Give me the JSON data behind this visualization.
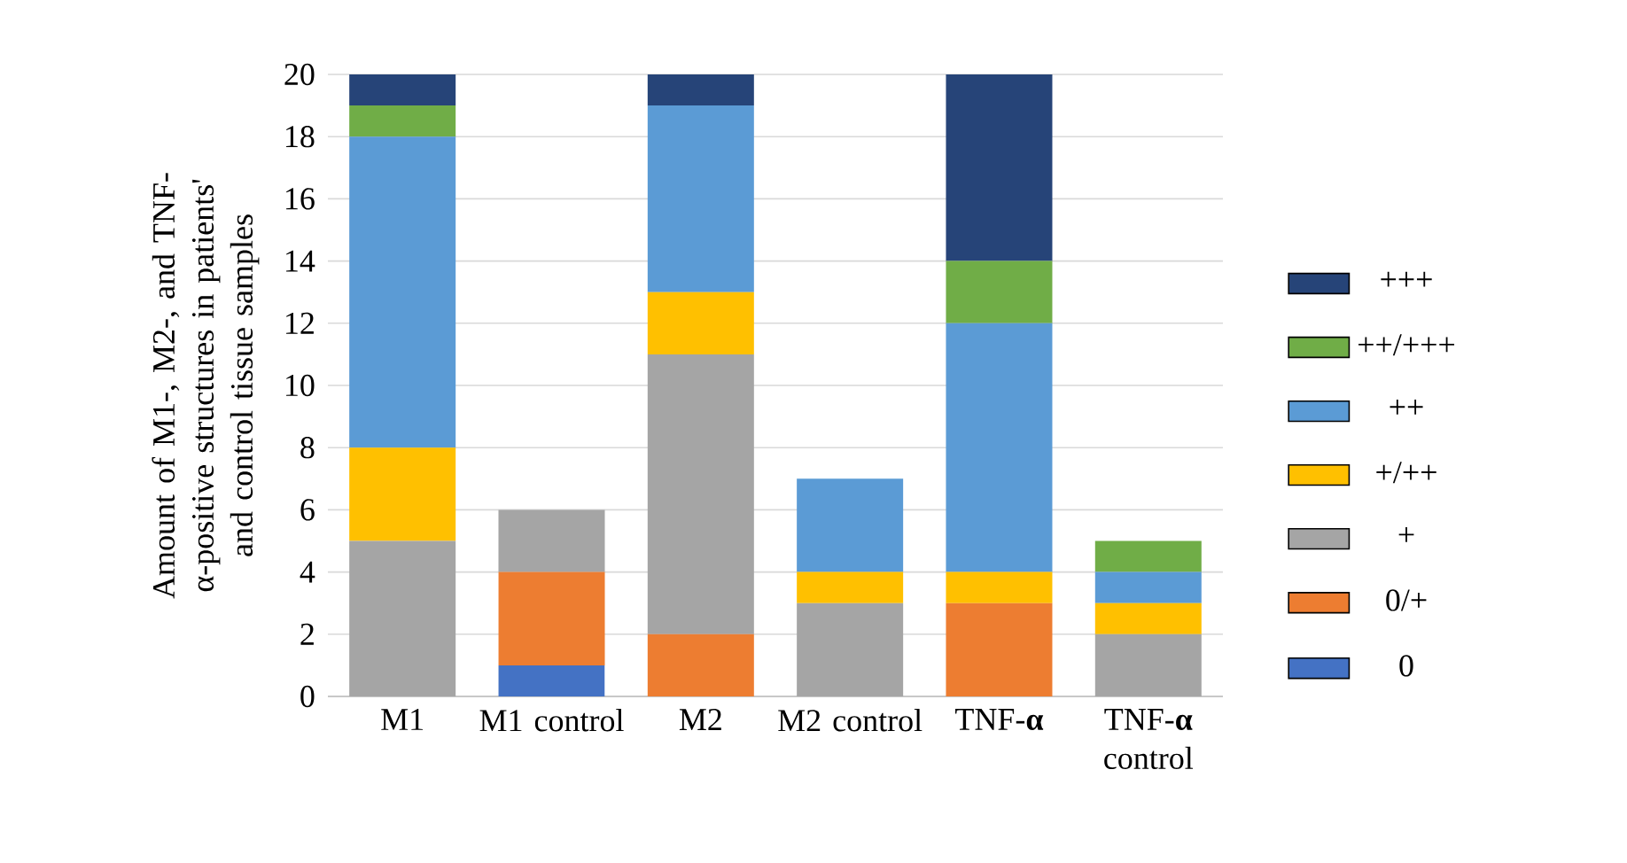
{
  "chart_data": {
    "type": "bar",
    "stacked": true,
    "ylabel": "Amount of M1-, M2-, and TNF-α-positive structures in patients' and control tissue samples",
    "categories": [
      "M1",
      "M1 control",
      "M2",
      "M2 control",
      "TNF-**α**",
      "TNF-**α** control"
    ],
    "series": [
      {
        "name": "0",
        "color": "#4472c4",
        "values": [
          0,
          1,
          0,
          0,
          0,
          0
        ]
      },
      {
        "name": "0/+",
        "color": "#ed7d31",
        "values": [
          0,
          3,
          2,
          0,
          3,
          0
        ]
      },
      {
        "name": "+",
        "color": "#a5a5a5",
        "values": [
          5,
          2,
          9,
          3,
          0,
          2
        ]
      },
      {
        "name": "+/++",
        "color": "#ffc000",
        "values": [
          3,
          0,
          2,
          1,
          1,
          1
        ]
      },
      {
        "name": "++",
        "color": "#5b9bd5",
        "values": [
          10,
          0,
          6,
          3,
          8,
          1
        ]
      },
      {
        "name": "++/+++",
        "color": "#70ad47",
        "values": [
          1,
          0,
          0,
          0,
          2,
          1
        ]
      },
      {
        "name": "+++",
        "color": "#264478",
        "values": [
          1,
          0,
          1,
          0,
          6,
          0
        ]
      }
    ],
    "ylim": [
      0,
      20
    ],
    "yticks": [
      0,
      2,
      4,
      6,
      8,
      10,
      12,
      14,
      16,
      18,
      20
    ],
    "grid": "y",
    "legend": "right"
  }
}
